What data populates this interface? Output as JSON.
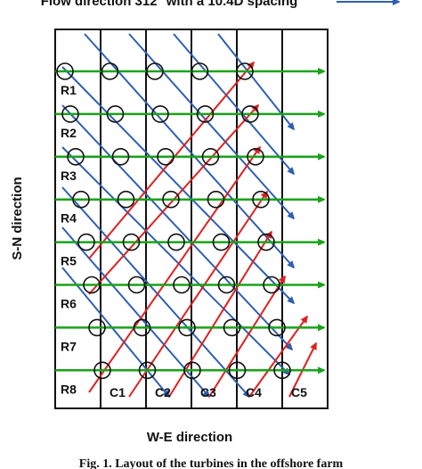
{
  "header": {
    "title": "Flow direction 312° with a 10.4D spacing"
  },
  "rows": [
    "R1",
    "R2",
    "R3",
    "R4",
    "R5",
    "R6",
    "R7",
    "R8"
  ],
  "columns": [
    "C1",
    "C2",
    "C3",
    "C4",
    "C5"
  ],
  "y_axis_label": "S-N direction",
  "x_axis_label": "W-E direction",
  "caption": "Fig. 1. Layout of the turbines in the offshore farm"
}
